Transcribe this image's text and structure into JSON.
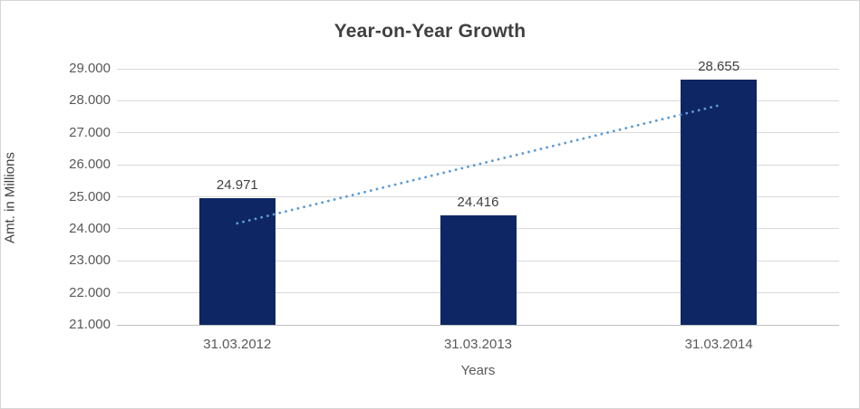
{
  "window": {
    "background": "#ffffff",
    "border_color": "#d6d6d6"
  },
  "chart_data": {
    "type": "bar",
    "title": "Year-on-Year Growth",
    "xlabel": "Years",
    "ylabel": "Amt. in Millions",
    "categories": [
      "31.03.2012",
      "31.03.2013",
      "31.03.2014"
    ],
    "values": [
      24971,
      24416,
      28655
    ],
    "data_labels": [
      "24.971",
      "24.416",
      "28.655"
    ],
    "ylim": [
      21000,
      29000
    ],
    "ytick_step": 1000,
    "ytick_labels": [
      "21.000",
      "22.000",
      "23.000",
      "24.000",
      "25.000",
      "26.000",
      "27.000",
      "28.000",
      "29.000"
    ],
    "grid": true,
    "legend": "none",
    "colors": {
      "bar": "#0e2663",
      "gridline": "#d9d9d9",
      "axis_line": "#bfbfbf",
      "title_text": "#404040",
      "tick_text": "#595959"
    },
    "trendline": {
      "style": "dotted",
      "color": "#5b9bd5",
      "start_value": 24172,
      "end_value": 27856,
      "from_category_index": 0,
      "to_category_index": 2
    }
  }
}
